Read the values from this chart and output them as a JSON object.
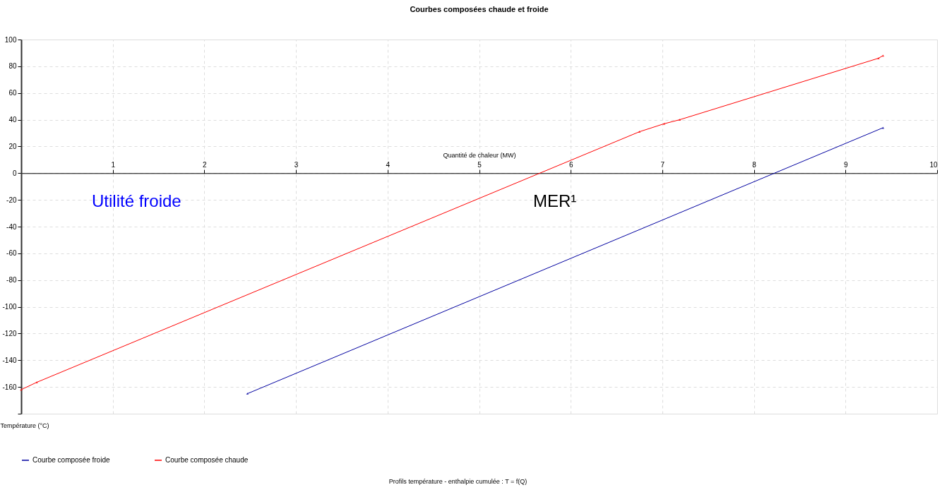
{
  "chart_data": {
    "type": "line",
    "title": "Courbes composées chaude et froide",
    "xlabel": "Quantité de chaleur (MW)",
    "ylabel": "Température (°C)",
    "series": [
      {
        "name": "Courbe composée froide",
        "color": "#0000a0",
        "x": [
          2.47,
          9.41
        ],
        "values": [
          -165,
          34
        ]
      },
      {
        "name": "Courbe composée chaude",
        "color": "#ff0000",
        "x": [
          0,
          0.17,
          6.75,
          7.02,
          7.19,
          9.36,
          9.41
        ],
        "values": [
          -162,
          -156.5,
          31,
          37,
          40,
          86,
          88
        ]
      }
    ],
    "xlim": [
      0,
      10
    ],
    "xticks": [
      1,
      2,
      3,
      4,
      5,
      6,
      7,
      8,
      9,
      10
    ],
    "ylim": [
      -180,
      100
    ],
    "yticks": [
      {
        "value": -180,
        "label": null
      },
      -160,
      -140,
      -120,
      -100,
      -80,
      -60,
      -40,
      -20,
      0,
      20,
      40,
      60,
      80,
      100
    ],
    "annotations": [
      "Utilité froide",
      "MER¹",
      "Profils température - enthalpie cumulée : T = f(Q)"
    ],
    "grid": true,
    "legend": "bottom",
    "marker": "triangle",
    "line_style": "solid"
  }
}
